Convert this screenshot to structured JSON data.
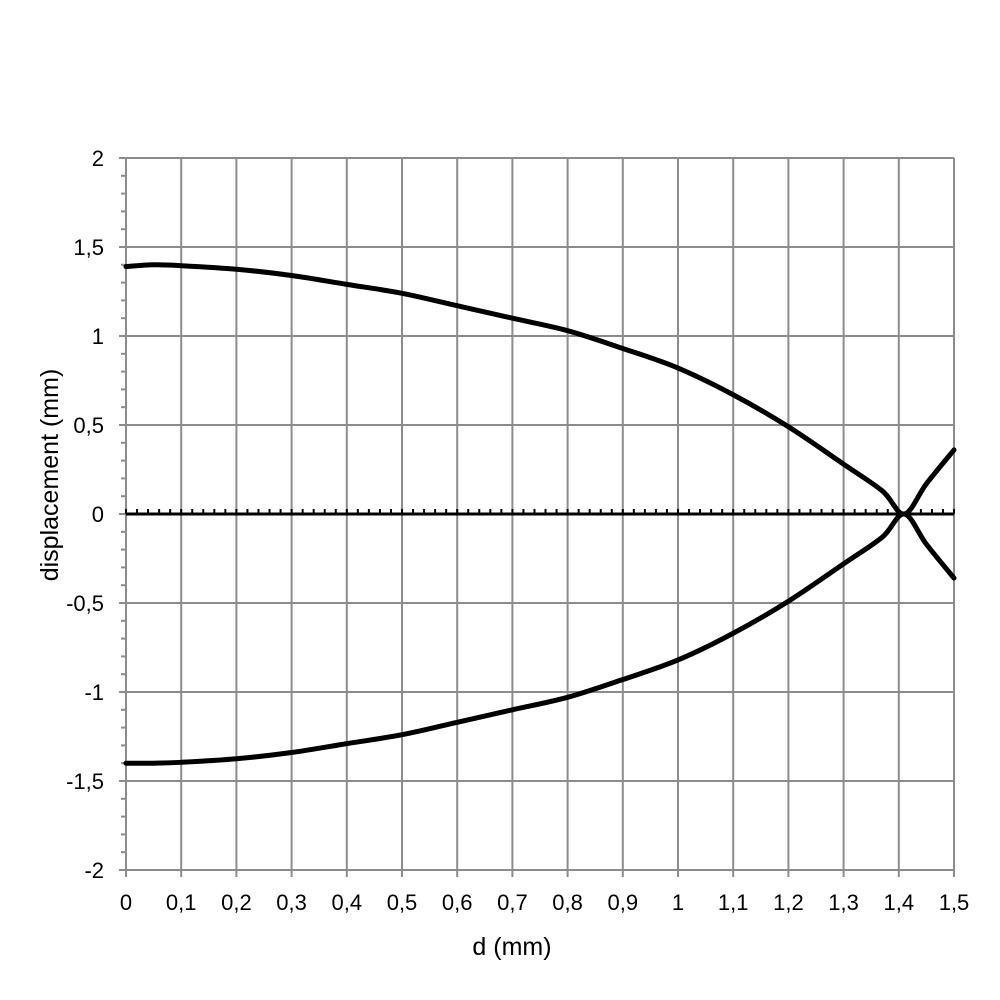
{
  "chart_data": {
    "type": "line",
    "title": "",
    "xlabel": "d (mm)",
    "ylabel": "displacement (mm)",
    "xlim": [
      0,
      1.5
    ],
    "ylim": [
      -2,
      2
    ],
    "grid": true,
    "x_ticks": [
      0,
      0.1,
      0.2,
      0.3,
      0.4,
      0.5,
      0.6,
      0.7,
      0.8,
      0.9,
      1.0,
      1.1,
      1.2,
      1.3,
      1.4,
      1.5
    ],
    "x_tick_labels": [
      "0",
      "0,1",
      "0,2",
      "0,3",
      "0,4",
      "0,5",
      "0,6",
      "0,7",
      "0,8",
      "0,9",
      "1",
      "1,1",
      "1,2",
      "1,3",
      "1,4",
      "1,5"
    ],
    "y_ticks": [
      2,
      1.5,
      1,
      0.5,
      0,
      -0.5,
      -1,
      -1.5,
      -2
    ],
    "y_tick_labels": [
      "2",
      "1,5",
      "1",
      "0,5",
      "0",
      "-0,5",
      "-1",
      "-1,5",
      "-2"
    ],
    "y_minor_step": 0.1,
    "x_minor_step": 0.02,
    "series": [
      {
        "color": "#000000",
        "x": [
          0,
          0.05,
          0.1,
          0.2,
          0.3,
          0.4,
          0.5,
          0.6,
          0.7,
          0.8,
          0.9,
          1.0,
          1.1,
          1.2,
          1.3,
          1.37,
          1.41,
          1.45,
          1.5
        ],
        "y": [
          1.39,
          1.4,
          1.395,
          1.375,
          1.34,
          1.29,
          1.24,
          1.17,
          1.1,
          1.03,
          0.93,
          0.82,
          0.67,
          0.49,
          0.28,
          0.13,
          0.0,
          0.17,
          0.36
        ]
      },
      {
        "color": "#000000",
        "x": [
          0,
          0.05,
          0.1,
          0.2,
          0.3,
          0.4,
          0.5,
          0.6,
          0.7,
          0.8,
          0.9,
          1.0,
          1.1,
          1.2,
          1.3,
          1.37,
          1.41,
          1.45,
          1.5
        ],
        "y": [
          -1.4,
          -1.4,
          -1.395,
          -1.375,
          -1.34,
          -1.29,
          -1.24,
          -1.17,
          -1.1,
          -1.03,
          -0.93,
          -0.82,
          -0.67,
          -0.49,
          -0.28,
          -0.13,
          0.0,
          -0.17,
          -0.36
        ]
      }
    ]
  }
}
